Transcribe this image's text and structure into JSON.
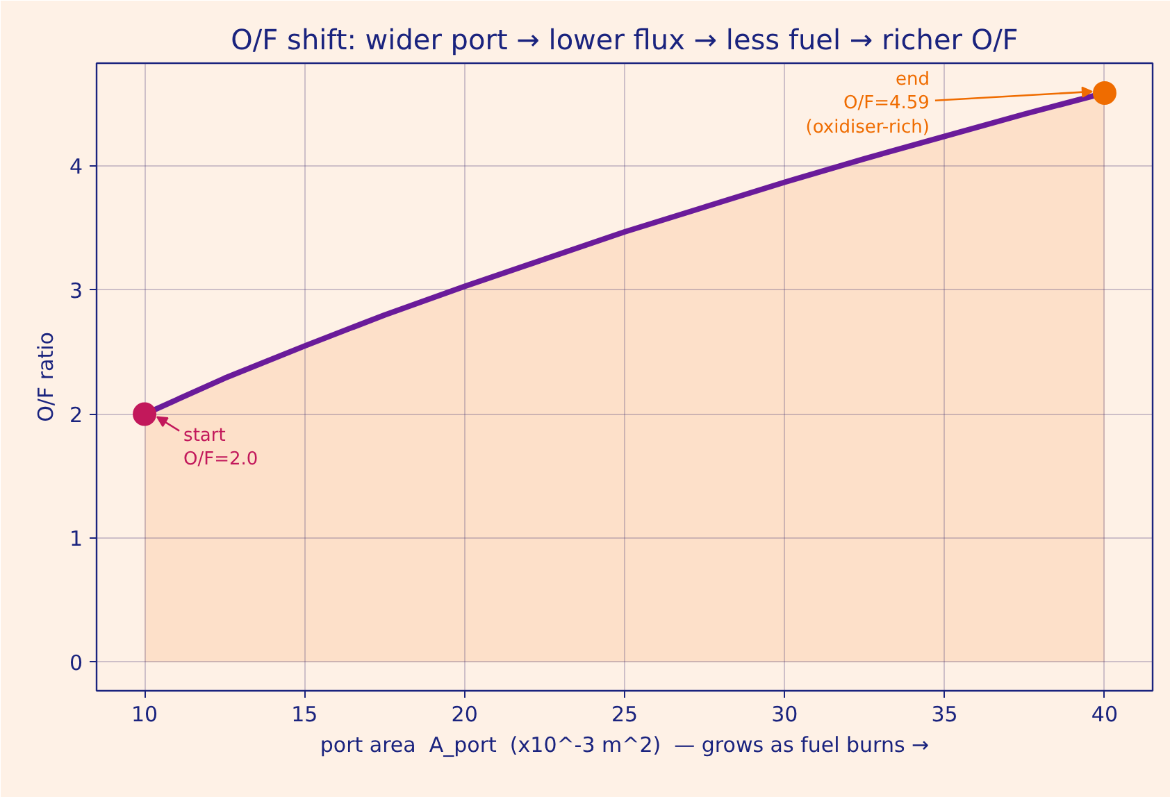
{
  "chart_data": {
    "type": "line",
    "title": "O/F shift: wider port → lower flux → less fuel → richer O/F",
    "xlabel": "port area  A_port  (x10^-3 m^2)  — grows as fuel burns →",
    "ylabel": "O/F ratio",
    "x": [
      10,
      12.5,
      15,
      17.5,
      20,
      22.5,
      25,
      27.5,
      30,
      32.5,
      35,
      37.5,
      40
    ],
    "series": [
      {
        "type": "area",
        "color": "#fde0c9",
        "values": [
          2.0,
          2.29,
          2.55,
          2.8,
          3.03,
          3.25,
          3.47,
          3.67,
          3.87,
          4.06,
          4.24,
          4.42,
          4.59
        ]
      },
      {
        "color": "#6a1b9a",
        "line_style": "solid",
        "values": [
          2.0,
          2.29,
          2.55,
          2.8,
          3.03,
          3.25,
          3.47,
          3.67,
          3.87,
          4.06,
          4.24,
          4.42,
          4.59
        ]
      },
      {
        "type": "scatter",
        "color": "#c2185b",
        "marker": "circle",
        "x": [
          10
        ],
        "values": [
          2.0
        ]
      },
      {
        "type": "scatter",
        "color": "#ef6c00",
        "marker": "circle",
        "x": [
          40
        ],
        "values": [
          4.59
        ]
      }
    ],
    "xlim": [
      8.5,
      41.5
    ],
    "ylim": [
      -0.23,
      4.83
    ],
    "xticks": [
      10,
      15,
      20,
      25,
      30,
      35,
      40
    ],
    "yticks": [
      0,
      1,
      2,
      3,
      4
    ],
    "grid": true,
    "annotations": [
      {
        "text": "start\nO/F=2.0",
        "x": 10,
        "y": 2.0
      },
      {
        "text": "end\nO/F=4.59\n(oxidiser-rich)",
        "x": 40,
        "y": 4.59
      }
    ]
  }
}
